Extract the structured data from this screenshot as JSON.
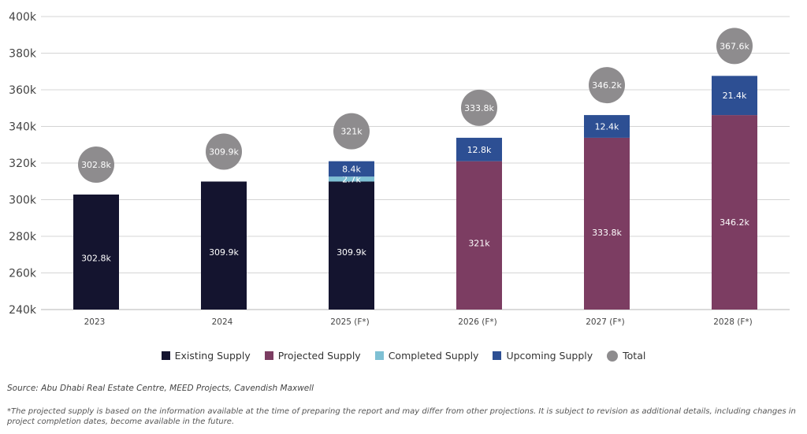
{
  "chart_data": {
    "type": "bar",
    "stacked": true,
    "title": "",
    "xlabel": "",
    "ylabel": "",
    "ylim": [
      240000,
      400000
    ],
    "yticks": [
      "240k",
      "260k",
      "280k",
      "300k",
      "320k",
      "340k",
      "360k",
      "380k",
      "400k"
    ],
    "ytick_values": [
      240000,
      260000,
      280000,
      300000,
      320000,
      340000,
      360000,
      380000,
      400000
    ],
    "grid": true,
    "legend_position": "bottom-center",
    "categories": [
      "2023",
      "2024",
      "2025 (F*)",
      "2026 (F*)",
      "2027 (F*)",
      "2028 (F*)"
    ],
    "series": [
      {
        "name": "Existing Supply",
        "color": "#14142f",
        "values": [
          302800,
          309900,
          309900,
          null,
          null,
          null
        ],
        "labels": [
          "302.8k",
          "309.9k",
          "309.9k",
          null,
          null,
          null
        ]
      },
      {
        "name": "Projected Supply",
        "color": "#7c3d62",
        "values": [
          null,
          null,
          null,
          321000,
          333800,
          346200
        ],
        "labels": [
          null,
          null,
          null,
          "321k",
          "333.8k",
          "346.2k"
        ]
      },
      {
        "name": "Completed Supply",
        "color": "#7ec0d4",
        "values": [
          null,
          null,
          2700,
          null,
          null,
          null
        ],
        "labels": [
          null,
          null,
          "2.7k",
          null,
          null,
          null
        ]
      },
      {
        "name": "Upcoming Supply",
        "color": "#2d4f93",
        "values": [
          null,
          null,
          8400,
          12800,
          12400,
          21400
        ],
        "labels": [
          null,
          null,
          "8.4k",
          "12.8k",
          "12.4k",
          "21.4k"
        ]
      }
    ],
    "totals": {
      "name": "Total",
      "color": "#8e8c8e",
      "values": [
        302800,
        309900,
        321000,
        333800,
        346200,
        367600
      ],
      "labels": [
        "302.8k",
        "309.9k",
        "321k",
        "333.8k",
        "346.2k",
        "367.6k"
      ]
    }
  },
  "legend": [
    {
      "label": "Existing Supply",
      "color": "#14142f",
      "shape": "square"
    },
    {
      "label": "Projected Supply",
      "color": "#7c3d62",
      "shape": "square"
    },
    {
      "label": "Completed Supply",
      "color": "#7ec0d4",
      "shape": "square"
    },
    {
      "label": "Upcoming Supply",
      "color": "#2d4f93",
      "shape": "square"
    },
    {
      "label": "Total",
      "color": "#8e8c8e",
      "shape": "circle"
    }
  ],
  "source": "Source: Abu Dhabi Real Estate Centre, MEED Projects, Cavendish Maxwell",
  "footnote": "*The projected supply is based on the information available at the time of preparing the report and may differ from other projections. It is subject to revision as additional details, including changes in project completion dates, become available in the future."
}
